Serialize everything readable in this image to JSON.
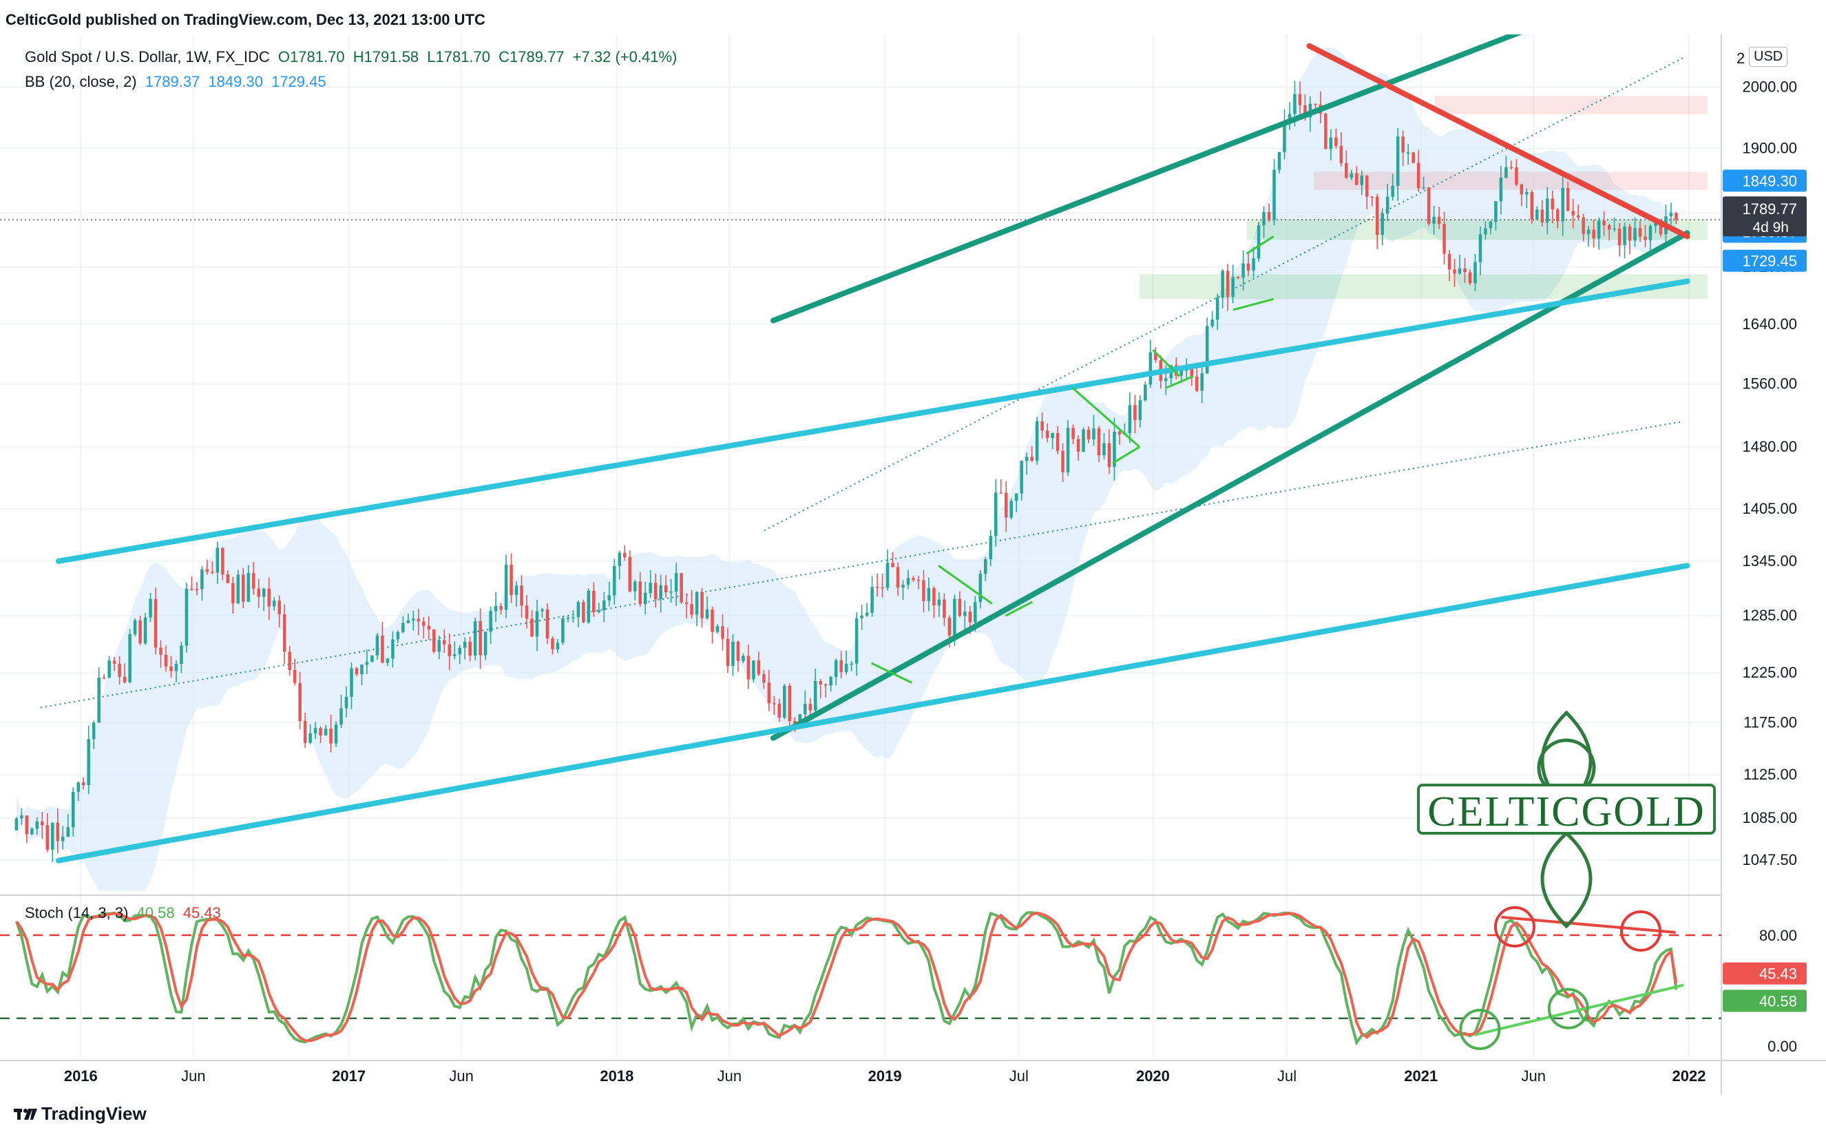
{
  "header": {
    "published": "CelticGold published on TradingView.com, Dec 13, 2021 13:00 UTC",
    "symbol": "Gold Spot / U.S. Dollar, 1W, FX_IDC",
    "ohlc": {
      "o": "O1781.70",
      "h": "H1791.58",
      "l": "L1781.70",
      "c": "C1789.77",
      "chg": "+7.32 (+0.41%)"
    },
    "bb_label": "BB (20, close, 2)",
    "bb_values": [
      "1789.37",
      "1849.30",
      "1729.45"
    ]
  },
  "price_axis": {
    "currency": "USD",
    "ticks": [
      "2000.00",
      "1900.00",
      "1800.00",
      "1720.00",
      "1640.00",
      "1560.00",
      "1480.00",
      "1405.00",
      "1345.00",
      "1285.00",
      "1225.00",
      "1175.00",
      "1125.00",
      "1085.00",
      "1047.50"
    ],
    "top_tick": "2",
    "last_price": "1789.77",
    "countdown": "4d 9h",
    "bb_upper": "1849.30",
    "bb_basis": "1789.37",
    "bb_lower": "1729.45"
  },
  "time_axis": {
    "labels": [
      "2016",
      "Jun",
      "2017",
      "Jun",
      "2018",
      "Jun",
      "2019",
      "Jul",
      "2020",
      "Jul",
      "2021",
      "Jun",
      "2022"
    ]
  },
  "stoch": {
    "label": "Stoch (14, 3, 3)",
    "k_value": "40.58",
    "d_value": "45.43",
    "ticks": [
      "80.00",
      "0.00"
    ]
  },
  "branding": {
    "tradingview": "TradingView",
    "watermark": "CELTICGOLD"
  },
  "colors": {
    "bull": "#26a69a",
    "bear": "#ef5350",
    "bb_fill": "#cfe8fb",
    "trend_green": "#179b7e",
    "trend_cyan": "#2ec4db",
    "trend_red": "#e8453c",
    "stoch_k": "#5fb55f",
    "stoch_d": "#f0624f",
    "axis_blue": "#2196f3"
  },
  "chart_data": {
    "type": "candlestick",
    "title": "Gold Spot / U.S. Dollar, 1W, FX_IDC",
    "y_scale": "log",
    "ylim": [
      1020,
      2090
    ],
    "x": [
      "2015-11",
      "2015-12",
      "2016-01",
      "2016-02",
      "2016-03",
      "2016-04",
      "2016-05",
      "2016-06",
      "2016-07",
      "2016-08",
      "2016-09",
      "2016-10",
      "2016-11",
      "2016-12",
      "2017-01",
      "2017-02",
      "2017-03",
      "2017-04",
      "2017-05",
      "2017-06",
      "2017-07",
      "2017-08",
      "2017-09",
      "2017-10",
      "2017-11",
      "2017-12",
      "2018-01",
      "2018-02",
      "2018-03",
      "2018-04",
      "2018-05",
      "2018-06",
      "2018-07",
      "2018-08",
      "2018-09",
      "2018-10",
      "2018-11",
      "2018-12",
      "2019-01",
      "2019-02",
      "2019-03",
      "2019-04",
      "2019-05",
      "2019-06",
      "2019-07",
      "2019-08",
      "2019-09",
      "2019-10",
      "2019-11",
      "2019-12",
      "2020-01",
      "2020-02",
      "2020-03",
      "2020-04",
      "2020-05",
      "2020-06",
      "2020-07",
      "2020-08",
      "2020-09",
      "2020-10",
      "2020-11",
      "2020-12",
      "2021-01",
      "2021-02",
      "2021-03",
      "2021-04",
      "2021-05",
      "2021-06",
      "2021-07",
      "2021-08",
      "2021-09",
      "2021-10",
      "2021-11",
      "2021-12"
    ],
    "close": [
      1085,
      1060,
      1118,
      1235,
      1235,
      1292,
      1215,
      1320,
      1352,
      1310,
      1318,
      1275,
      1175,
      1150,
      1210,
      1255,
      1248,
      1268,
      1268,
      1242,
      1268,
      1320,
      1282,
      1270,
      1275,
      1305,
      1342,
      1318,
      1325,
      1315,
      1298,
      1252,
      1222,
      1200,
      1192,
      1215,
      1222,
      1280,
      1322,
      1318,
      1292,
      1282,
      1283,
      1410,
      1427,
      1520,
      1472,
      1512,
      1463,
      1517,
      1588,
      1585,
      1577,
      1686,
      1730,
      1781,
      1975,
      1967,
      1885,
      1879,
      1776,
      1895,
      1847,
      1734,
      1708,
      1769,
      1903,
      1770,
      1814,
      1812,
      1757,
      1783,
      1775,
      1790
    ],
    "bollinger": {
      "basis": "1789.37",
      "upper": "1849.30",
      "lower": "1729.45"
    },
    "trendlines": [
      {
        "name": "green upper channel",
        "from": [
          "2018-08",
          1645
        ],
        "to": [
          "2021-12",
          2210
        ]
      },
      {
        "name": "green lower channel",
        "from": [
          "2018-08",
          1160
        ],
        "to": [
          "2021-12",
          1770
        ]
      },
      {
        "name": "cyan upper channel",
        "from": [
          "2015-12",
          1345
        ],
        "to": [
          "2021-12",
          1700
        ]
      },
      {
        "name": "cyan lower channel",
        "from": [
          "2015-12",
          1047
        ],
        "to": [
          "2021-12",
          1340
        ]
      },
      {
        "name": "red resistance",
        "from": [
          "2020-08",
          2070
        ],
        "to": [
          "2021-12",
          1765
        ]
      }
    ],
    "stoch_k_last": 40.58,
    "stoch_d_last": 45.43
  }
}
